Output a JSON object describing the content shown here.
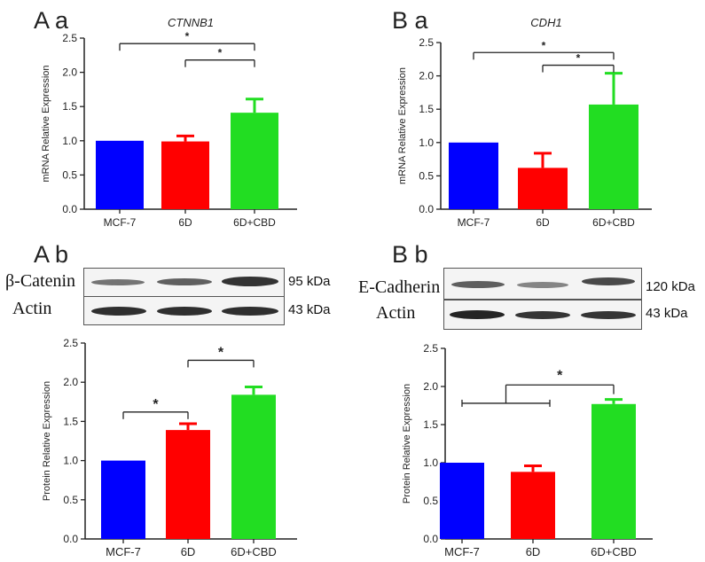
{
  "panels": {
    "a_a": {
      "label": "A a"
    },
    "b_a": {
      "label": "B a"
    },
    "a_b": {
      "label": "A b"
    },
    "b_b": {
      "label": "B b"
    }
  },
  "blots": {
    "a_b": {
      "rows": [
        {
          "name": "β-Catenin",
          "kda": "95 kDa"
        },
        {
          "name": "Actin",
          "kda": "43 kDa"
        }
      ]
    },
    "b_b": {
      "rows": [
        {
          "name": "E-Cadherin",
          "kda": "120 kDa"
        },
        {
          "name": "Actin",
          "kda": "43 kDa"
        }
      ]
    }
  },
  "chart_data": [
    {
      "id": "a_a",
      "type": "bar",
      "title": "CTNNB1",
      "xlabel": "",
      "ylabel": "mRNA Relative Expression",
      "ylim": [
        0,
        2.5
      ],
      "yticks": [
        "0.0",
        "0.5",
        "1.0",
        "1.5",
        "2.0",
        "2.5"
      ],
      "categories": [
        "MCF-7",
        "6D",
        "6D+CBD"
      ],
      "values": [
        1.0,
        0.99,
        1.41
      ],
      "errors": [
        0,
        0.08,
        0.2
      ],
      "colors": [
        "#0000ff",
        "#ff0000",
        "#22dd22"
      ],
      "significance": [
        {
          "from": 0,
          "to": 2,
          "y": 2.42,
          "label": "*"
        },
        {
          "from": 1,
          "to": 2,
          "y": 2.18,
          "label": "*"
        }
      ]
    },
    {
      "id": "b_a",
      "type": "bar",
      "title": "CDH1",
      "xlabel": "",
      "ylabel": "mRNA Relative Expression",
      "ylim": [
        0,
        2.5
      ],
      "yticks": [
        "0.0",
        "0.5",
        "1.0",
        "1.5",
        "2.0",
        "2.5"
      ],
      "categories": [
        "MCF-7",
        "6D",
        "6D+CBD"
      ],
      "values": [
        1.0,
        0.62,
        1.57
      ],
      "errors": [
        0,
        0.22,
        0.47
      ],
      "colors": [
        "#0000ff",
        "#ff0000",
        "#22dd22"
      ],
      "significance": [
        {
          "from": 0,
          "to": 2,
          "y": 2.35,
          "label": "*"
        },
        {
          "from": 1,
          "to": 2,
          "y": 2.16,
          "label": "*"
        }
      ]
    },
    {
      "id": "a_b",
      "type": "bar",
      "title": "",
      "xlabel": "",
      "ylabel": "Protein Relative Expression",
      "ylim": [
        0,
        2.5
      ],
      "yticks": [
        "0.0",
        "0.5",
        "1.0",
        "1.5",
        "2.0",
        "2.5"
      ],
      "categories": [
        "MCF-7",
        "6D",
        "6D+CBD"
      ],
      "values": [
        1.0,
        1.39,
        1.84
      ],
      "errors": [
        0,
        0.08,
        0.1
      ],
      "colors": [
        "#0000ff",
        "#ff0000",
        "#22dd22"
      ],
      "significance": [
        {
          "from": 0,
          "to": 1,
          "y": 1.62,
          "label": "*"
        },
        {
          "from": 1,
          "to": 2,
          "y": 2.28,
          "label": "*"
        }
      ]
    },
    {
      "id": "b_b",
      "type": "bar",
      "title": "",
      "xlabel": "",
      "ylabel": "Protein Relative Expression",
      "ylim": [
        0,
        2.5
      ],
      "yticks": [
        "0.0",
        "0.5",
        "1.0",
        "1.5",
        "2.0",
        "2.5"
      ],
      "categories": [
        "MCF-7",
        "6D",
        "6D+CBD"
      ],
      "values": [
        1.0,
        0.88,
        1.77
      ],
      "errors": [
        0,
        0.08,
        0.06
      ],
      "colors": [
        "#0000ff",
        "#ff0000",
        "#22dd22"
      ],
      "significance": [
        {
          "type": "group",
          "groupFrom": 0,
          "groupTo": 1,
          "to": 2,
          "y": 2.02,
          "groupY": 1.78,
          "label": "*"
        }
      ]
    }
  ]
}
